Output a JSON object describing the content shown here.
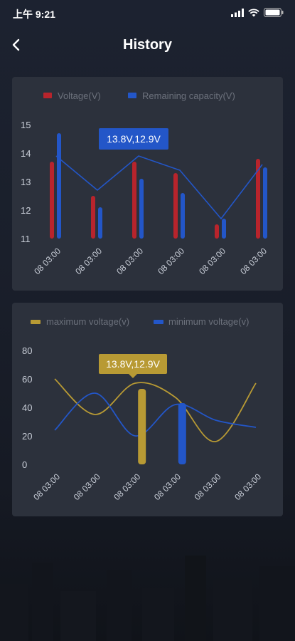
{
  "status": {
    "time": "上午 9:21"
  },
  "header": {
    "title": "History"
  },
  "colors": {
    "voltage": "#b8242c",
    "capacity": "#2356c8",
    "max_voltage": "#b89a34",
    "min_voltage": "#2356c8",
    "tooltip1_bg": "#2356c8",
    "tooltip2_bg": "#b89a34"
  },
  "chart_data": [
    {
      "type": "bar",
      "legend": [
        "Voltage(V)",
        "Remaining capacity(V)"
      ],
      "categories": [
        "08 03:00",
        "08 03:00",
        "08 03:00",
        "08 03:00",
        "08 03:00",
        "08 03:00"
      ],
      "y_ticks": [
        "15",
        "14",
        "13",
        "12",
        "11"
      ],
      "ylim": [
        11,
        15
      ],
      "series": [
        {
          "name": "Voltage(V)",
          "values": [
            13.7,
            12.5,
            13.7,
            13.3,
            11.5,
            13.8
          ]
        },
        {
          "name": "Remaining capacity(V)",
          "values": [
            14.7,
            12.1,
            13.1,
            12.6,
            11.7,
            13.5
          ]
        }
      ],
      "line_values": [
        13.9,
        12.7,
        13.9,
        13.4,
        11.7,
        13.6
      ],
      "tooltip": "13.8V,12.9V"
    },
    {
      "type": "line",
      "legend": [
        "maximum voltage(v)",
        "minimum voltage(v)"
      ],
      "categories": [
        "08 03:00",
        "08 03:00",
        "08 03:00",
        "08 03:00",
        "08 03:00",
        "08 03:00"
      ],
      "y_ticks": [
        "80",
        "60",
        "40",
        "20",
        "0"
      ],
      "ylim": [
        0,
        80
      ],
      "series": [
        {
          "name": "maximum voltage(v)",
          "values": [
            60,
            35,
            57,
            47,
            16,
            57
          ]
        },
        {
          "name": "minimum voltage(v)",
          "values": [
            24,
            50,
            20,
            42,
            31,
            26
          ]
        }
      ],
      "highlight_bars": [
        {
          "series": "maximum voltage(v)",
          "category_index": 2,
          "value": 53
        },
        {
          "series": "minimum voltage(v)",
          "category_index": 3,
          "value": 43
        }
      ],
      "tooltip": "13.8V,12.9V"
    }
  ]
}
